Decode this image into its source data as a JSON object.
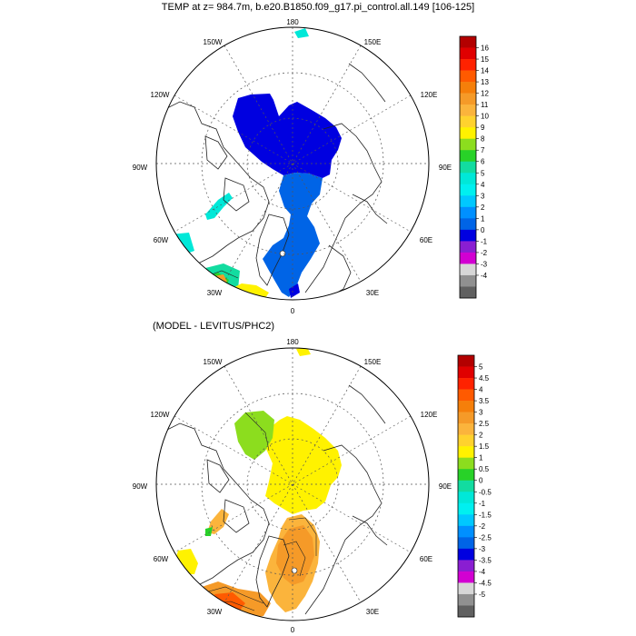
{
  "top_panel": {
    "title": "TEMP at z= 984.7m, b.e20.B1850.f09_g17.pi_control.all.149 [106-125]",
    "lon_labels": {
      "l180": "180",
      "l150e": "150E",
      "l120e": "120E",
      "l90e": "90E",
      "l60e": "60E",
      "l30e": "30E",
      "l0": "0",
      "l30w": "30W",
      "l60w": "60W",
      "l90w": "90W",
      "l120w": "120W",
      "l150w": "150W"
    },
    "colorbar": {
      "labels": [
        "16",
        "15",
        "14",
        "13",
        "12",
        "11",
        "10",
        "9",
        "8",
        "7",
        "6",
        "5",
        "4",
        "3",
        "2",
        "1",
        "0",
        "-1",
        "-2",
        "-3",
        "-4"
      ],
      "colors": [
        "#b30000",
        "#e00000",
        "#ff2200",
        "#ff5a00",
        "#f57f0a",
        "#f59a28",
        "#fbb43c",
        "#ffd22e",
        "#fff200",
        "#8cdd1e",
        "#28d228",
        "#12dca0",
        "#00e8d8",
        "#00f0f0",
        "#00c8ff",
        "#0090ff",
        "#0064e6",
        "#0000e0",
        "#8a1ed2",
        "#d200d2",
        "#d7d7d7",
        "#909090",
        "#606060"
      ]
    }
  },
  "bottom_panel": {
    "title": "(MODEL - LEVITUS/PHC2)",
    "lon_labels": {
      "l180": "180",
      "l150e": "150E",
      "l120e": "120E",
      "l90e": "90E",
      "l60e": "60E",
      "l30e": "30E",
      "l0": "0",
      "l30w": "30W",
      "l60w": "60W",
      "l90w": "90W",
      "l120w": "120W",
      "l150w": "150W"
    },
    "colorbar": {
      "labels": [
        "5",
        "4.5",
        "4",
        "3.5",
        "3",
        "2.5",
        "2",
        "1.5",
        "1",
        "0.5",
        "0",
        "-0.5",
        "-1",
        "-1.5",
        "-2",
        "-2.5",
        "-3",
        "-3.5",
        "-4",
        "-4.5",
        "-5"
      ],
      "colors": [
        "#b30000",
        "#e00000",
        "#ff2200",
        "#ff5a00",
        "#f57f0a",
        "#f59a28",
        "#fbb43c",
        "#ffd22e",
        "#fff200",
        "#8cdd1e",
        "#28d228",
        "#12dca0",
        "#00e8d8",
        "#00f0f0",
        "#00c8ff",
        "#0090ff",
        "#0064e6",
        "#0000e0",
        "#8a1ed2",
        "#d200d2",
        "#d7d7d7",
        "#909090",
        "#606060"
      ]
    }
  }
}
